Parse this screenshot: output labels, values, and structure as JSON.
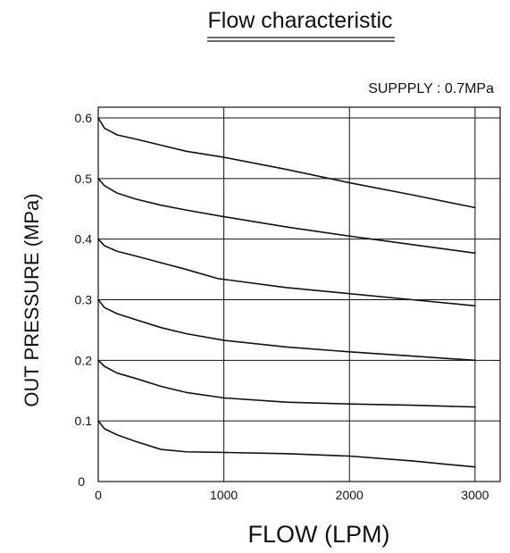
{
  "chart_data": {
    "type": "line",
    "title": "Flow characteristic",
    "annotation": "SUPPPLY : 0.7MPa",
    "xlabel": "FLOW (LPM)",
    "ylabel": "OUT PRESSURE (MPa)",
    "xlim": [
      0,
      3200
    ],
    "ylim": [
      0,
      0.6
    ],
    "x_ticks": [
      0,
      1000,
      2000,
      3000
    ],
    "y_ticks": [
      0,
      0.1,
      0.2,
      0.3,
      0.4,
      0.5,
      0.6
    ],
    "x_tick_labels": [
      "0",
      "1000",
      "2000",
      "3000"
    ],
    "y_tick_labels": [
      "0",
      "0.1",
      "0.2",
      "0.3",
      "0.4",
      "0.5",
      "0.6"
    ],
    "grid": true,
    "series": [
      {
        "x": [
          0,
          50,
          150,
          300,
          500,
          700,
          1000,
          1500,
          2000,
          2500,
          3000
        ],
        "y": [
          0.6,
          0.583,
          0.572,
          0.565,
          0.555,
          0.545,
          0.535,
          0.515,
          0.493,
          0.473,
          0.452
        ]
      },
      {
        "x": [
          0,
          50,
          150,
          300,
          500,
          700,
          1000,
          1500,
          2000,
          2500,
          3000
        ],
        "y": [
          0.5,
          0.488,
          0.476,
          0.466,
          0.456,
          0.448,
          0.437,
          0.42,
          0.405,
          0.391,
          0.377
        ]
      },
      {
        "x": [
          0,
          50,
          150,
          300,
          500,
          700,
          950,
          1500,
          2000,
          2500,
          3000
        ],
        "y": [
          0.4,
          0.389,
          0.38,
          0.372,
          0.361,
          0.35,
          0.335,
          0.32,
          0.31,
          0.3,
          0.29
        ]
      },
      {
        "x": [
          0,
          50,
          150,
          300,
          500,
          700,
          1000,
          1500,
          2000,
          2500,
          3000
        ],
        "y": [
          0.3,
          0.287,
          0.277,
          0.267,
          0.254,
          0.244,
          0.233,
          0.222,
          0.214,
          0.207,
          0.2
        ]
      },
      {
        "x": [
          0,
          50,
          150,
          300,
          500,
          700,
          1000,
          1500,
          2000,
          2500,
          3000
        ],
        "y": [
          0.2,
          0.19,
          0.179,
          0.17,
          0.157,
          0.147,
          0.138,
          0.131,
          0.128,
          0.126,
          0.123
        ]
      },
      {
        "x": [
          0,
          50,
          150,
          300,
          500,
          700,
          1000,
          1500,
          2000,
          2500,
          3000
        ],
        "y": [
          0.1,
          0.087,
          0.077,
          0.066,
          0.053,
          0.049,
          0.048,
          0.046,
          0.042,
          0.034,
          0.024
        ]
      }
    ]
  }
}
